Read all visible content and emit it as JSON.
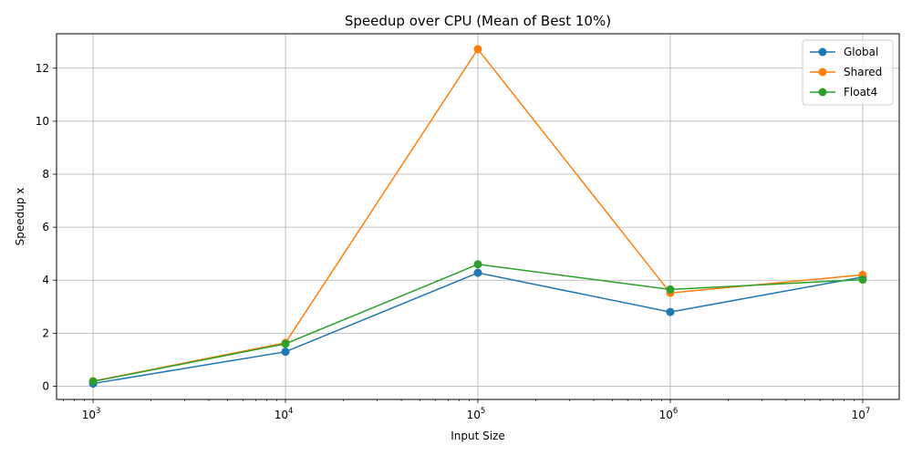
{
  "chart_data": {
    "type": "line",
    "title": "Speedup over CPU (Mean of Best 10%)",
    "xlabel": "Input Size",
    "ylabel": "Speedup x",
    "x_scale": "log",
    "x": [
      1000,
      10000,
      100000,
      1000000,
      10000000
    ],
    "x_tick_labels": [
      {
        "base": "10",
        "exp": "3"
      },
      {
        "base": "10",
        "exp": "4"
      },
      {
        "base": "10",
        "exp": "5"
      },
      {
        "base": "10",
        "exp": "6"
      },
      {
        "base": "10",
        "exp": "7"
      }
    ],
    "y_ticks": [
      0,
      2,
      4,
      6,
      8,
      10,
      12
    ],
    "y_tick_labels": [
      "0",
      "2",
      "4",
      "6",
      "8",
      "10",
      "12"
    ],
    "ylim": [
      -0.5,
      13.3
    ],
    "grid": true,
    "legend_position": "top-right",
    "series": [
      {
        "name": "Global",
        "color": "#1f77b4",
        "values": [
          0.1,
          1.3,
          4.28,
          2.8,
          4.12
        ]
      },
      {
        "name": "Shared",
        "color": "#ff7f0e",
        "values": [
          0.19,
          1.64,
          12.72,
          3.52,
          4.2
        ]
      },
      {
        "name": "Float4",
        "color": "#2ca02c",
        "values": [
          0.18,
          1.6,
          4.6,
          3.65,
          4.02
        ]
      }
    ]
  }
}
